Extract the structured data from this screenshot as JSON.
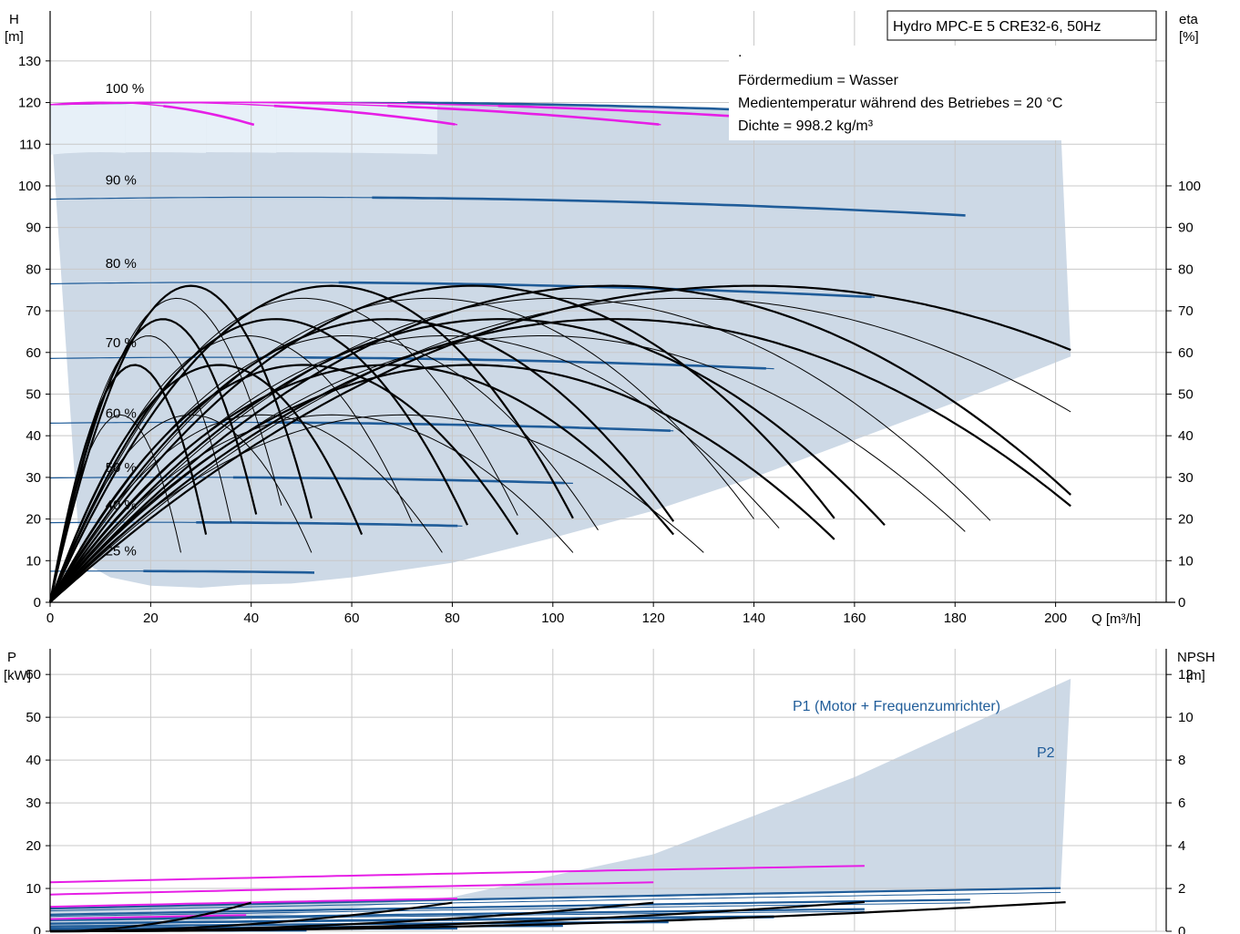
{
  "chart_data": [
    {
      "type": "line",
      "title": "Hydro MPC-E 5 CRE32-6, 50Hz",
      "y_axis_label": "H",
      "y_axis_unit": "[m]",
      "y2_axis_label": "eta",
      "y2_axis_unit": "[%]",
      "x_axis_label": "Q [m³/h]",
      "xlim": [
        0,
        222
      ],
      "ylim": [
        0,
        142
      ],
      "x_ticks": [
        0,
        20,
        40,
        60,
        80,
        100,
        120,
        140,
        160,
        180,
        200
      ],
      "y_ticks": [
        0,
        10,
        20,
        30,
        40,
        50,
        60,
        70,
        80,
        90,
        100,
        110,
        120,
        130
      ],
      "y2_ticks": [
        0,
        10,
        20,
        30,
        40,
        50,
        60,
        70,
        80,
        90,
        100
      ],
      "grid": true,
      "notes": [
        ".",
        "Fördermedium = Wasser",
        "Medientemperatur während des Betriebes = 20 °C",
        "Dichte = 998.2 kg/m³"
      ],
      "speed_labels": [
        {
          "text": "100 %",
          "x": 11,
          "y": 121
        },
        {
          "text": "90 %",
          "x": 11,
          "y": 99
        },
        {
          "text": "80 %",
          "x": 11,
          "y": 79
        },
        {
          "text": "70 %",
          "x": 11,
          "y": 60
        },
        {
          "text": "60 %",
          "x": 11,
          "y": 43
        },
        {
          "text": "50 %",
          "x": 11,
          "y": 30
        },
        {
          "text": "40 %",
          "x": 11,
          "y": 21
        },
        {
          "text": "25 %",
          "x": 11,
          "y": 10
        }
      ],
      "series": [
        {
          "kind": "pump_curve",
          "speed": 1.0,
          "q_end": 203
        },
        {
          "kind": "pump_curve",
          "speed": 0.9,
          "q_end": 183
        },
        {
          "kind": "pump_curve",
          "speed": 0.8,
          "q_end": 164
        },
        {
          "kind": "pump_curve",
          "speed": 0.7,
          "q_end": 144
        },
        {
          "kind": "pump_curve",
          "speed": 0.6,
          "q_end": 124
        },
        {
          "kind": "pump_curve",
          "speed": 0.5,
          "q_end": 104
        },
        {
          "kind": "pump_curve",
          "speed": 0.4,
          "q_end": 83
        },
        {
          "kind": "pump_curve",
          "speed": 0.25,
          "q_end": 53
        }
      ],
      "pump_counts": [
        1,
        2,
        3,
        4,
        5
      ],
      "colors": {
        "envelope": "#cdd9e6",
        "envelope_light": "#eaf2fa",
        "curve": "#1f5c99",
        "magenta": "#e61ee6",
        "efficiency": "#000000",
        "grid": "#c8c8c8"
      }
    },
    {
      "type": "line",
      "y_axis_label": "P",
      "y_axis_unit": "[kW]",
      "y2_axis_label": "NPSH",
      "y2_axis_unit": "[m]",
      "ylim": [
        0,
        66
      ],
      "y_ticks": [
        0,
        10,
        20,
        30,
        40,
        50,
        60
      ],
      "y2_ticks": [
        0,
        2,
        4,
        6,
        8,
        10,
        12
      ],
      "series_labels": [
        "P1 (Motor + Frequenzumrichter)",
        "P2"
      ]
    }
  ]
}
